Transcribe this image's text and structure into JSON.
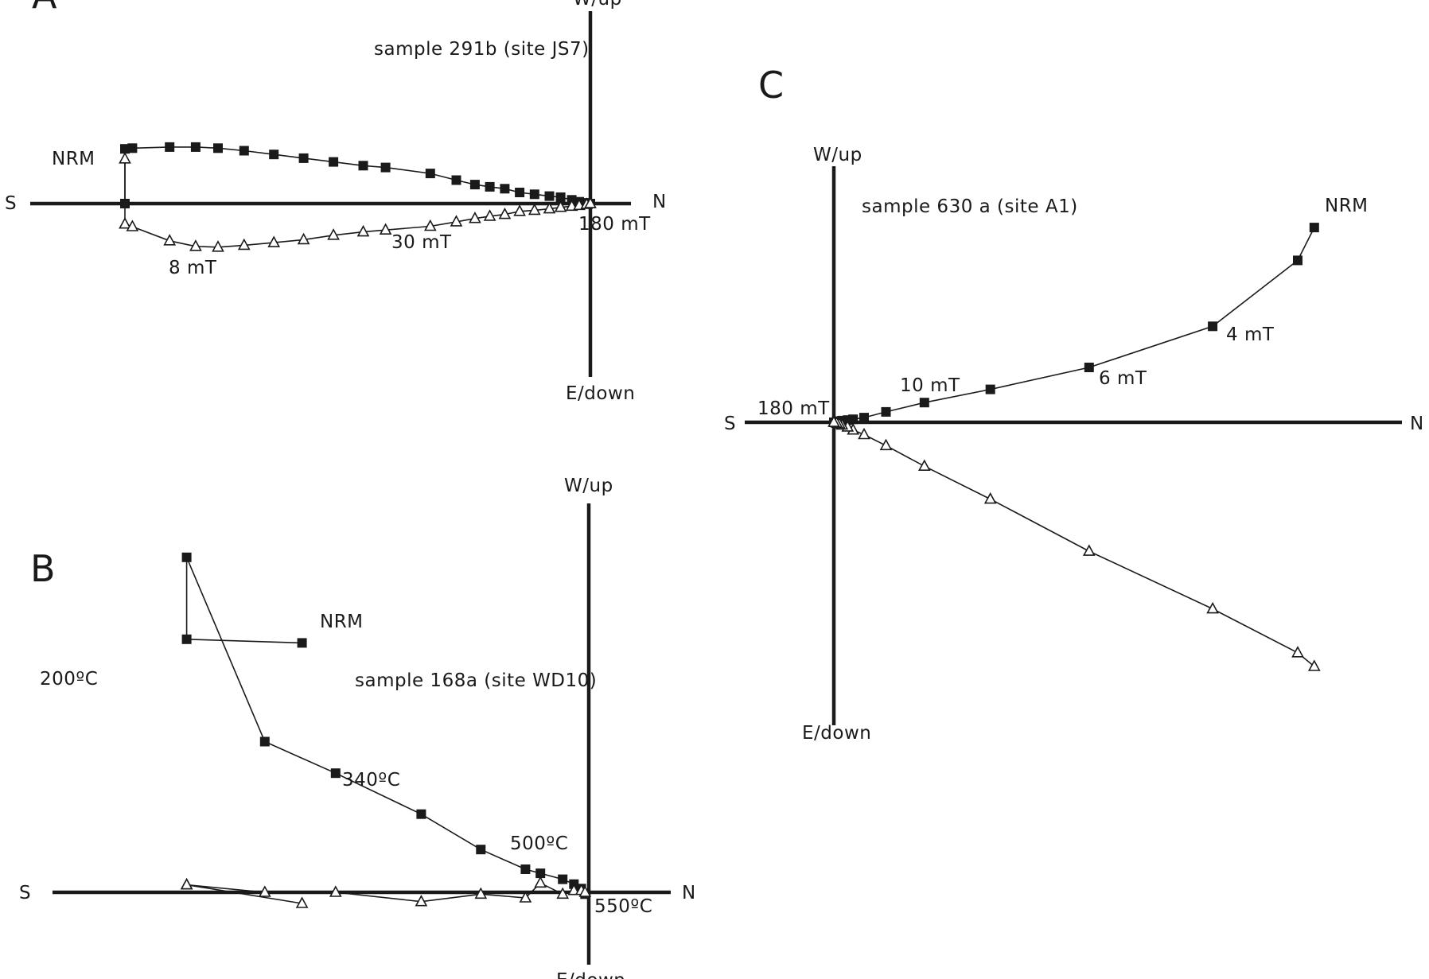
{
  "chart_data": [
    {
      "panel": "A",
      "type": "scatter",
      "sample": "sample 291b (site JS7)",
      "axes": {
        "left": "S",
        "right": "N",
        "top": "W/up",
        "bottom": "E/down"
      },
      "step_labels": [
        "NRM",
        "8 mT",
        "30 mT",
        "180 mT"
      ],
      "series": [
        {
          "marker": "filled-square",
          "line": "connected",
          "x": [
            -12.5,
            -12.5,
            -12.3,
            -11.3,
            -10.6,
            -10.0,
            -9.3,
            -8.5,
            -7.7,
            -6.9,
            -6.1,
            -5.5,
            -4.3,
            -3.6,
            -3.1,
            -2.7,
            -2.3,
            -1.9,
            -1.5,
            -1.1,
            -0.8,
            -0.5,
            -0.3,
            -0.1,
            0.0
          ],
          "y": [
            0.0,
            1.47,
            1.49,
            1.52,
            1.52,
            1.49,
            1.42,
            1.32,
            1.22,
            1.12,
            1.02,
            0.97,
            0.81,
            0.63,
            0.51,
            0.45,
            0.4,
            0.3,
            0.25,
            0.2,
            0.17,
            0.1,
            0.05,
            0.02,
            0.0
          ]
        },
        {
          "marker": "open-triangle",
          "line": "connected",
          "x": [
            -12.5,
            -12.5,
            -12.3,
            -11.3,
            -10.6,
            -10.0,
            -9.3,
            -8.5,
            -7.7,
            -6.9,
            -6.1,
            -5.5,
            -4.3,
            -3.6,
            -3.1,
            -2.7,
            -2.3,
            -1.9,
            -1.5,
            -1.1,
            -0.8,
            -0.5,
            -0.3,
            -0.1,
            0.0
          ],
          "y": [
            1.2,
            -0.55,
            -0.62,
            -1.0,
            -1.15,
            -1.17,
            -1.12,
            -1.05,
            -0.97,
            -0.85,
            -0.76,
            -0.71,
            -0.61,
            -0.49,
            -0.4,
            -0.34,
            -0.29,
            -0.21,
            -0.18,
            -0.14,
            -0.1,
            -0.07,
            -0.05,
            -0.02,
            0.0
          ]
        }
      ]
    },
    {
      "panel": "B",
      "type": "scatter",
      "sample": "sample 168a (site WD10)",
      "axes": {
        "left": "S",
        "right": "N",
        "top": "W/up",
        "bottom": "E/down"
      },
      "step_labels": [
        "NRM",
        "200ºC",
        "340ºC",
        "500ºC",
        "550ºC"
      ],
      "series": [
        {
          "marker": "filled-square",
          "line": "connected",
          "x": [
            -7.7,
            -10.8,
            -10.8,
            -8.7,
            -6.8,
            -4.5,
            -2.9,
            -1.7,
            -1.3,
            -0.7,
            -0.4,
            -0.2,
            -0.1
          ],
          "y": [
            6.7,
            6.8,
            9.0,
            4.05,
            3.2,
            2.1,
            1.15,
            0.62,
            0.51,
            0.35,
            0.22,
            0.1,
            -0.05
          ]
        },
        {
          "marker": "open-triangle",
          "line": "connected",
          "x": [
            -7.7,
            -10.8,
            -10.8,
            -8.7,
            -6.8,
            -4.5,
            -2.9,
            -1.7,
            -1.3,
            -0.7,
            -0.4,
            -0.2,
            -0.1
          ],
          "y": [
            -0.3,
            0.2,
            0.2,
            0.0,
            0.0,
            -0.25,
            -0.05,
            -0.15,
            0.25,
            -0.05,
            0.05,
            0.05,
            0.0
          ]
        }
      ]
    },
    {
      "panel": "C",
      "type": "scatter",
      "sample": "sample 630 a (site A1)",
      "axes": {
        "left": "S",
        "right": "N",
        "top": "W/up",
        "bottom": "E/down"
      },
      "step_labels": [
        "NRM",
        "4 mT",
        "6 mT",
        "10 mT",
        "180 mT"
      ],
      "series": [
        {
          "marker": "filled-square",
          "line": "connected",
          "x": [
            17.5,
            16.9,
            13.8,
            9.3,
            5.7,
            3.3,
            1.9,
            1.1,
            0.7,
            0.5,
            0.3,
            0.2,
            0.1,
            0.0
          ],
          "y": [
            7.1,
            5.9,
            3.5,
            2.0,
            1.2,
            0.72,
            0.38,
            0.17,
            0.11,
            0.08,
            0.06,
            0.04,
            0.02,
            0.0
          ]
        },
        {
          "marker": "open-triangle",
          "line": "connected",
          "x": [
            17.5,
            16.9,
            13.8,
            9.3,
            5.7,
            3.3,
            1.9,
            1.1,
            0.7,
            0.5,
            0.3,
            0.2,
            0.1,
            0.0
          ],
          "y": [
            -8.9,
            -8.4,
            -6.8,
            -4.7,
            -2.8,
            -1.6,
            -0.85,
            -0.45,
            -0.28,
            -0.17,
            -0.1,
            -0.06,
            -0.03,
            0.0
          ]
        }
      ]
    }
  ]
}
